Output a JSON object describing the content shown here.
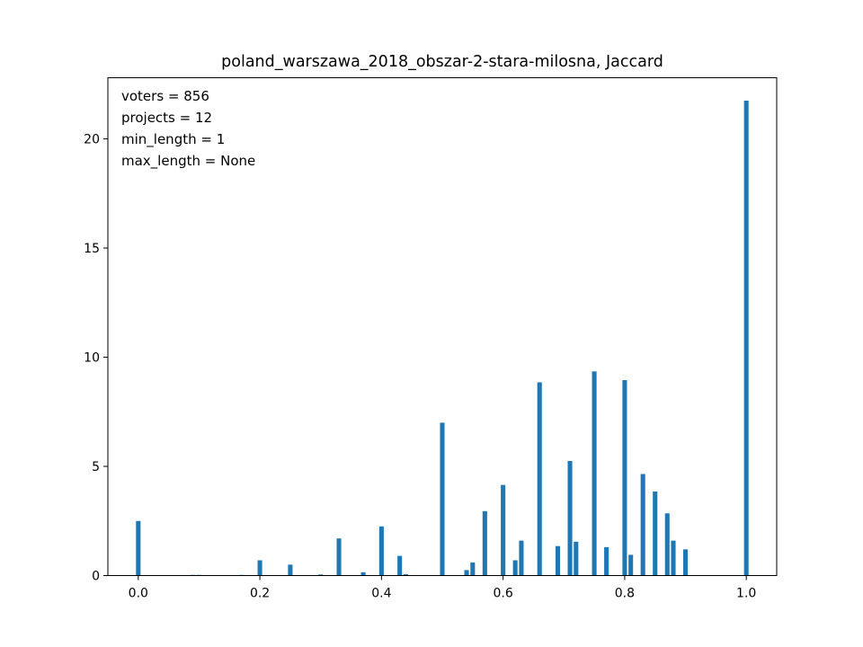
{
  "chart_data": {
    "type": "bar",
    "title": "poland_warszawa_2018_obszar-2-stara-milosna, Jaccard",
    "xlabel": "",
    "ylabel": "",
    "xlim": [
      -0.05,
      1.05
    ],
    "ylim": [
      0,
      22.8
    ],
    "bin_width": 0.01,
    "bar_color": "#1f77b4",
    "xticks": [
      0.0,
      0.2,
      0.4,
      0.6,
      0.8,
      1.0
    ],
    "xtick_labels": [
      "0.0",
      "0.2",
      "0.4",
      "0.6",
      "0.8",
      "1.0"
    ],
    "yticks": [
      0,
      5,
      10,
      15,
      20
    ],
    "ytick_labels": [
      "0",
      "5",
      "10",
      "15",
      "20"
    ],
    "annotations": [
      "voters = 856",
      "projects = 12",
      "min_length = 1",
      "max_length = None"
    ],
    "bins": [
      {
        "x": 0.0,
        "value": 2.5
      },
      {
        "x": 0.09,
        "value": 0.03
      },
      {
        "x": 0.1,
        "value": 0.03
      },
      {
        "x": 0.17,
        "value": 0.03
      },
      {
        "x": 0.2,
        "value": 0.7
      },
      {
        "x": 0.25,
        "value": 0.5
      },
      {
        "x": 0.3,
        "value": 0.05
      },
      {
        "x": 0.33,
        "value": 1.7
      },
      {
        "x": 0.37,
        "value": 0.15
      },
      {
        "x": 0.4,
        "value": 2.25
      },
      {
        "x": 0.43,
        "value": 0.9
      },
      {
        "x": 0.44,
        "value": 0.06
      },
      {
        "x": 0.5,
        "value": 7.0
      },
      {
        "x": 0.54,
        "value": 0.25
      },
      {
        "x": 0.55,
        "value": 0.6
      },
      {
        "x": 0.57,
        "value": 2.95
      },
      {
        "x": 0.6,
        "value": 4.15
      },
      {
        "x": 0.62,
        "value": 0.7
      },
      {
        "x": 0.63,
        "value": 1.6
      },
      {
        "x": 0.66,
        "value": 8.85
      },
      {
        "x": 0.69,
        "value": 1.35
      },
      {
        "x": 0.71,
        "value": 5.25
      },
      {
        "x": 0.72,
        "value": 1.55
      },
      {
        "x": 0.75,
        "value": 9.35
      },
      {
        "x": 0.77,
        "value": 1.3
      },
      {
        "x": 0.8,
        "value": 8.95
      },
      {
        "x": 0.81,
        "value": 0.95
      },
      {
        "x": 0.83,
        "value": 4.65
      },
      {
        "x": 0.85,
        "value": 3.85
      },
      {
        "x": 0.87,
        "value": 2.85
      },
      {
        "x": 0.88,
        "value": 1.6
      },
      {
        "x": 0.9,
        "value": 1.2
      },
      {
        "x": 1.0,
        "value": 21.75
      }
    ]
  }
}
